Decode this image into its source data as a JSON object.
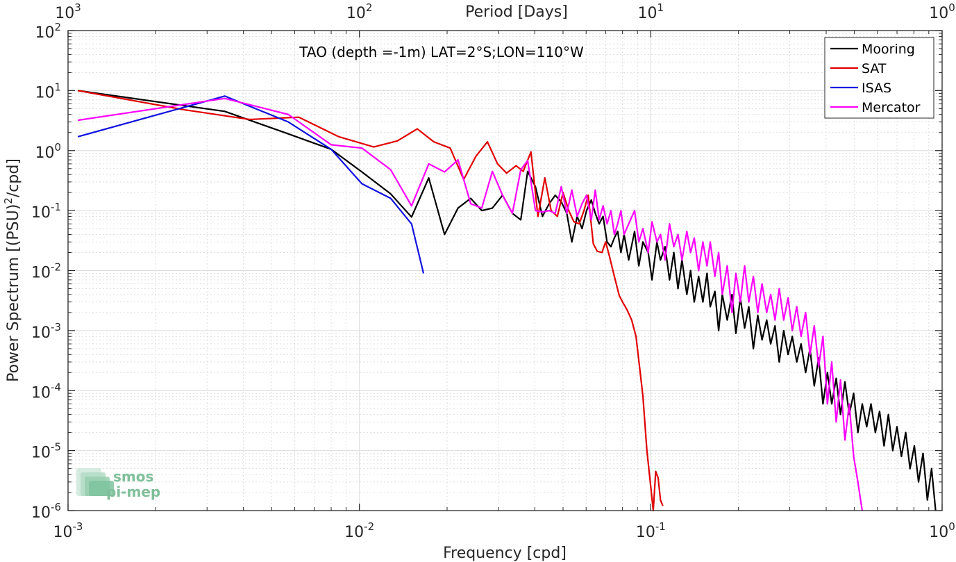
{
  "chart_data": {
    "type": "line",
    "title": "TAO (depth =-1m) LAT=2°S;LON=110°W",
    "xlabel": "Frequency [cpd]",
    "ylabel": "Power Spectrum [(PSU)",
    "ylabel_sup": "2",
    "ylabel_suffix": "/cpd]",
    "top_xlabel": "Period [Days]",
    "xscale": "log",
    "yscale": "log",
    "xlim": [
      0.001,
      1
    ],
    "ylim": [
      1e-06,
      100
    ],
    "grid": true,
    "legend_position": "top-right",
    "x_ticks": [
      {
        "base": "10",
        "exp": "-3",
        "value": 0.001
      },
      {
        "base": "10",
        "exp": "-2",
        "value": 0.01
      },
      {
        "base": "10",
        "exp": "-1",
        "value": 0.1
      },
      {
        "base": "10",
        "exp": "0",
        "value": 1
      }
    ],
    "top_ticks": [
      {
        "base": "10",
        "exp": "3",
        "value": 0.001
      },
      {
        "base": "10",
        "exp": "2",
        "value": 0.01
      },
      {
        "base": "10",
        "exp": "1",
        "value": 0.1
      },
      {
        "base": "10",
        "exp": "0",
        "value": 1
      }
    ],
    "y_ticks": [
      {
        "base": "10",
        "exp": "2",
        "value": 100
      },
      {
        "base": "10",
        "exp": "1",
        "value": 10
      },
      {
        "base": "10",
        "exp": "0",
        "value": 1
      },
      {
        "base": "10",
        "exp": "-1",
        "value": 0.1
      },
      {
        "base": "10",
        "exp": "-2",
        "value": 0.01
      },
      {
        "base": "10",
        "exp": "-3",
        "value": 0.001
      },
      {
        "base": "10",
        "exp": "-4",
        "value": 0.0001
      },
      {
        "base": "10",
        "exp": "-5",
        "value": 1e-05
      },
      {
        "base": "10",
        "exp": "-6",
        "value": 1e-06
      }
    ],
    "series": [
      {
        "name": "Mooring",
        "color": "#000000",
        "points": [
          [
            0.00108,
            10
          ],
          [
            0.00345,
            4.5
          ],
          [
            0.0057,
            1.9
          ],
          [
            0.008,
            1.05
          ],
          [
            0.0102,
            0.44
          ],
          [
            0.0128,
            0.19
          ],
          [
            0.0151,
            0.078
          ],
          [
            0.0173,
            0.35
          ],
          [
            0.0196,
            0.04
          ],
          [
            0.0218,
            0.11
          ],
          [
            0.0241,
            0.16
          ],
          [
            0.0263,
            0.1
          ],
          [
            0.0286,
            0.11
          ],
          [
            0.031,
            0.18
          ],
          [
            0.0335,
            0.09
          ],
          [
            0.0358,
            0.07
          ],
          [
            0.0378,
            0.45
          ],
          [
            0.0402,
            0.25
          ],
          [
            0.0425,
            0.08
          ],
          [
            0.0448,
            0.13
          ],
          [
            0.047,
            0.18
          ],
          [
            0.0493,
            0.14
          ],
          [
            0.0515,
            0.09
          ],
          [
            0.0536,
            0.03
          ],
          [
            0.0559,
            0.08
          ],
          [
            0.0581,
            0.05
          ],
          [
            0.0602,
            0.1
          ],
          [
            0.0625,
            0.15
          ],
          [
            0.0645,
            0.09
          ],
          [
            0.0665,
            0.06
          ],
          [
            0.0686,
            0.08
          ],
          [
            0.0708,
            0.03
          ],
          [
            0.073,
            0.025
          ],
          [
            0.075,
            0.035
          ],
          [
            0.077,
            0.045
          ],
          [
            0.079,
            0.02
          ],
          [
            0.081,
            0.04
          ],
          [
            0.084,
            0.015
          ],
          [
            0.088,
            0.045
          ],
          [
            0.091,
            0.012
          ],
          [
            0.094,
            0.03
          ],
          [
            0.098,
            0.02
          ],
          [
            0.101,
            0.007
          ],
          [
            0.105,
            0.03
          ],
          [
            0.108,
            0.015
          ],
          [
            0.112,
            0.025
          ],
          [
            0.116,
            0.007
          ],
          [
            0.12,
            0.02
          ],
          [
            0.124,
            0.005
          ],
          [
            0.128,
            0.015
          ],
          [
            0.133,
            0.004
          ],
          [
            0.137,
            0.01
          ],
          [
            0.141,
            0.003
          ],
          [
            0.146,
            0.008
          ],
          [
            0.151,
            0.003
          ],
          [
            0.156,
            0.009
          ],
          [
            0.16,
            0.0025
          ],
          [
            0.166,
            0.0045
          ],
          [
            0.171,
            0.001
          ],
          [
            0.176,
            0.004
          ],
          [
            0.183,
            0.0015
          ],
          [
            0.19,
            0.004
          ],
          [
            0.196,
            0.0009
          ],
          [
            0.203,
            0.0035
          ],
          [
            0.21,
            0.0011
          ],
          [
            0.217,
            0.0025
          ],
          [
            0.225,
            0.0005
          ],
          [
            0.233,
            0.0018
          ],
          [
            0.241,
            0.0007
          ],
          [
            0.25,
            0.0015
          ],
          [
            0.258,
            0.0006
          ],
          [
            0.267,
            0.0012
          ],
          [
            0.276,
            0.0003
          ],
          [
            0.286,
            0.001
          ],
          [
            0.296,
            0.0004
          ],
          [
            0.306,
            0.0008
          ],
          [
            0.317,
            0.0003
          ],
          [
            0.328,
            0.0006
          ],
          [
            0.34,
            0.0002
          ],
          [
            0.352,
            0.0005
          ],
          [
            0.364,
            0.00012
          ],
          [
            0.377,
            0.00035
          ],
          [
            0.39,
            6e-05
          ],
          [
            0.404,
            0.0002
          ],
          [
            0.418,
            6e-05
          ],
          [
            0.433,
            0.00016
          ],
          [
            0.448,
            4e-05
          ],
          [
            0.464,
            0.00014
          ],
          [
            0.48,
            4e-05
          ],
          [
            0.497,
            9e-05
          ],
          [
            0.514,
            2e-05
          ],
          [
            0.532,
            6e-05
          ],
          [
            0.551,
            2.5e-05
          ],
          [
            0.57,
            6e-05
          ],
          [
            0.59,
            2e-05
          ],
          [
            0.61,
            4.5e-05
          ],
          [
            0.632,
            1.2e-05
          ],
          [
            0.654,
            4e-05
          ],
          [
            0.677,
            1e-05
          ],
          [
            0.7,
            2.5e-05
          ],
          [
            0.725,
            8e-06
          ],
          [
            0.75,
            2e-05
          ],
          [
            0.776,
            5e-06
          ],
          [
            0.803,
            1.2e-05
          ],
          [
            0.83,
            3e-06
          ],
          [
            0.86,
            9e-06
          ],
          [
            0.89,
            1.5e-06
          ],
          [
            0.92,
            5e-06
          ],
          [
            0.95,
            1e-06
          ]
        ]
      },
      {
        "name": "SAT",
        "color": "#e00000",
        "points": [
          [
            0.00108,
            10
          ],
          [
            0.0025,
            4.8
          ],
          [
            0.0042,
            3.3
          ],
          [
            0.0062,
            3.6
          ],
          [
            0.0085,
            1.7
          ],
          [
            0.0112,
            1.15
          ],
          [
            0.0135,
            1.45
          ],
          [
            0.0158,
            2.3
          ],
          [
            0.018,
            1.4
          ],
          [
            0.0205,
            1.1
          ],
          [
            0.0228,
            0.33
          ],
          [
            0.0251,
            0.8
          ],
          [
            0.0275,
            1.4
          ],
          [
            0.0298,
            0.6
          ],
          [
            0.032,
            0.42
          ],
          [
            0.0345,
            0.56
          ],
          [
            0.0365,
            0.45
          ],
          [
            0.0388,
            0.95
          ],
          [
            0.041,
            0.08
          ],
          [
            0.0433,
            0.35
          ],
          [
            0.0455,
            0.1
          ],
          [
            0.0478,
            0.08
          ],
          [
            0.05,
            0.2
          ],
          [
            0.0523,
            0.1
          ],
          [
            0.0545,
            0.065
          ],
          [
            0.0568,
            0.06
          ],
          [
            0.059,
            0.1
          ],
          [
            0.061,
            0.18
          ],
          [
            0.0635,
            0.028
          ],
          [
            0.0655,
            0.021
          ],
          [
            0.068,
            0.02
          ],
          [
            0.07,
            0.03
          ],
          [
            0.072,
            0.018
          ],
          [
            0.075,
            0.008
          ],
          [
            0.078,
            0.0038
          ],
          [
            0.08,
            0.003
          ],
          [
            0.083,
            0.0022
          ],
          [
            0.086,
            0.0015
          ],
          [
            0.089,
            0.0008
          ],
          [
            0.092,
            0.0002
          ],
          [
            0.094,
            8e-05
          ],
          [
            0.097,
            1e-05
          ],
          [
            0.1,
            2.5e-06
          ],
          [
            0.102,
            1e-06
          ],
          [
            0.104,
            4.5e-06
          ],
          [
            0.106,
            3.5e-06
          ],
          [
            0.108,
            1.5e-06
          ],
          [
            0.11,
            1.2e-06
          ]
        ]
      },
      {
        "name": "ISAS",
        "color": "#1010e0",
        "points": [
          [
            0.00108,
            1.7
          ],
          [
            0.00345,
            8.1
          ],
          [
            0.0057,
            3
          ],
          [
            0.008,
            1.05
          ],
          [
            0.0102,
            0.28
          ],
          [
            0.0128,
            0.16
          ],
          [
            0.0151,
            0.06
          ],
          [
            0.0166,
            0.009
          ]
        ]
      },
      {
        "name": "Mercator",
        "color": "#ff00ff",
        "points": [
          [
            0.00108,
            3.2
          ],
          [
            0.00345,
            7.4
          ],
          [
            0.0057,
            4
          ],
          [
            0.008,
            1.25
          ],
          [
            0.0102,
            1.1
          ],
          [
            0.0128,
            0.48
          ],
          [
            0.0151,
            0.12
          ],
          [
            0.0173,
            0.6
          ],
          [
            0.0196,
            0.44
          ],
          [
            0.0218,
            0.7
          ],
          [
            0.0241,
            0.13
          ],
          [
            0.0263,
            0.11
          ],
          [
            0.0286,
            0.45
          ],
          [
            0.031,
            0.18
          ],
          [
            0.0335,
            0.09
          ],
          [
            0.0358,
            0.48
          ],
          [
            0.0378,
            0.68
          ],
          [
            0.0402,
            0.1
          ],
          [
            0.0425,
            0.095
          ],
          [
            0.0448,
            0.1
          ],
          [
            0.047,
            0.09
          ],
          [
            0.0493,
            0.25
          ],
          [
            0.0515,
            0.09
          ],
          [
            0.0536,
            0.22
          ],
          [
            0.0559,
            0.08
          ],
          [
            0.0581,
            0.13
          ],
          [
            0.0602,
            0.18
          ],
          [
            0.0625,
            0.07
          ],
          [
            0.0645,
            0.22
          ],
          [
            0.0665,
            0.07
          ],
          [
            0.0686,
            0.12
          ],
          [
            0.0708,
            0.06
          ],
          [
            0.073,
            0.1
          ],
          [
            0.075,
            0.04
          ],
          [
            0.077,
            0.06
          ],
          [
            0.079,
            0.1
          ],
          [
            0.081,
            0.04
          ],
          [
            0.084,
            0.06
          ],
          [
            0.088,
            0.1
          ],
          [
            0.091,
            0.03
          ],
          [
            0.094,
            0.05
          ],
          [
            0.098,
            0.02
          ],
          [
            0.101,
            0.065
          ],
          [
            0.105,
            0.03
          ],
          [
            0.108,
            0.04
          ],
          [
            0.112,
            0.015
          ],
          [
            0.116,
            0.06
          ],
          [
            0.12,
            0.025
          ],
          [
            0.124,
            0.04
          ],
          [
            0.128,
            0.015
          ],
          [
            0.133,
            0.045
          ],
          [
            0.137,
            0.02
          ],
          [
            0.141,
            0.035
          ],
          [
            0.146,
            0.01
          ],
          [
            0.151,
            0.03
          ],
          [
            0.156,
            0.012
          ],
          [
            0.16,
            0.03
          ],
          [
            0.166,
            0.008
          ],
          [
            0.171,
            0.02
          ],
          [
            0.176,
            0.004
          ],
          [
            0.183,
            0.012
          ],
          [
            0.19,
            0.002
          ],
          [
            0.196,
            0.009
          ],
          [
            0.203,
            0.003
          ],
          [
            0.21,
            0.012
          ],
          [
            0.217,
            0.003
          ],
          [
            0.225,
            0.008
          ],
          [
            0.233,
            0.002
          ],
          [
            0.241,
            0.006
          ],
          [
            0.25,
            0.002
          ],
          [
            0.258,
            0.004
          ],
          [
            0.267,
            0.0015
          ],
          [
            0.276,
            0.005
          ],
          [
            0.286,
            0.0015
          ],
          [
            0.296,
            0.0035
          ],
          [
            0.306,
            0.001
          ],
          [
            0.317,
            0.0025
          ],
          [
            0.328,
            0.0008
          ],
          [
            0.34,
            0.002
          ],
          [
            0.352,
            0.0004
          ],
          [
            0.364,
            0.0012
          ],
          [
            0.377,
            0.00025
          ],
          [
            0.39,
            0.0008
          ],
          [
            0.404,
            6e-05
          ],
          [
            0.418,
            0.0003
          ],
          [
            0.433,
            3e-05
          ],
          [
            0.448,
            0.00015
          ],
          [
            0.464,
            1.5e-05
          ],
          [
            0.48,
            6e-05
          ],
          [
            0.497,
            8e-06
          ],
          [
            0.514,
            3e-06
          ],
          [
            0.525,
            1.5e-06
          ],
          [
            0.532,
            1e-06
          ]
        ]
      }
    ]
  },
  "watermark": {
    "line1": "smos",
    "line2": "pi-mep"
  }
}
